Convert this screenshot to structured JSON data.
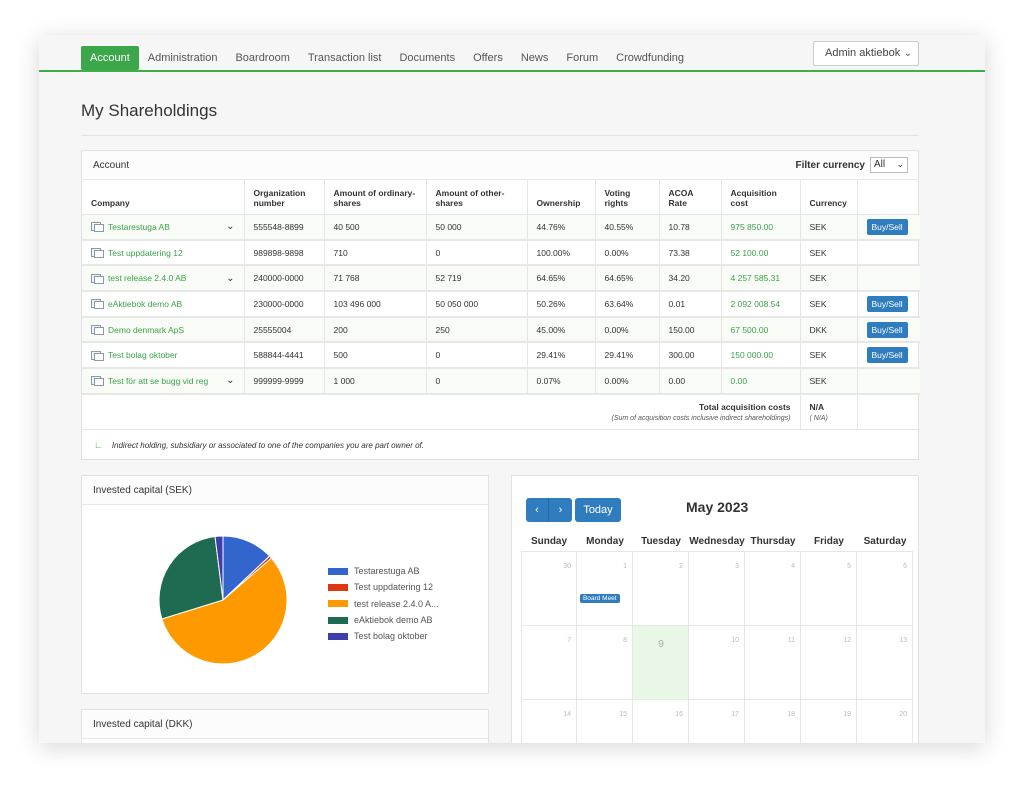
{
  "nav": {
    "items": [
      "Account",
      "Administration",
      "Boardroom",
      "Transaction list",
      "Documents",
      "Offers",
      "News",
      "Forum",
      "Crowdfunding"
    ],
    "active": "Account",
    "user_select": "Admin aktiebok"
  },
  "page_title": "My Shareholdings",
  "account_panel": {
    "title": "Account",
    "filter_label": "Filter currency",
    "filter_value": "All",
    "columns": [
      "Company",
      "Organization number",
      "Amount of ordinary-shares",
      "Amount of other-shares",
      "Ownership",
      "Voting rights",
      "ACOA Rate",
      "Acquisition cost",
      "Currency",
      ""
    ],
    "rows": [
      {
        "company": "Testarestuga AB",
        "org": "555548-8899",
        "ordinary": "40 500",
        "other": "50 000",
        "ownership": "44.76%",
        "voting": "40.55%",
        "acoa": "10.78",
        "cost": "975 850.00",
        "currency": "SEK",
        "expandable": true,
        "action": "Buy/Sell"
      },
      {
        "company": "Test uppdatering 12",
        "org": "989898-9898",
        "ordinary": "710",
        "other": "0",
        "ownership": "100.00%",
        "voting": "0.00%",
        "acoa": "73.38",
        "cost": "52 100.00",
        "currency": "SEK",
        "expandable": false,
        "action": ""
      },
      {
        "company": "test release 2.4.0 AB",
        "org": "240000-0000",
        "ordinary": "71 768",
        "other": "52 719",
        "ownership": "64.65%",
        "voting": "64.65%",
        "acoa": "34.20",
        "cost": "4 257 585.31",
        "currency": "SEK",
        "expandable": true,
        "action": ""
      },
      {
        "company": "eAktiebok demo AB",
        "org": "230000-0000",
        "ordinary": "103 496 000",
        "other": "50 050 000",
        "ownership": "50.26%",
        "voting": "63.64%",
        "acoa": "0.01",
        "cost": "2 092 008.54",
        "currency": "SEK",
        "expandable": false,
        "action": "Buy/Sell"
      },
      {
        "company": "Demo denmark ApS",
        "org": "25555004",
        "ordinary": "200",
        "other": "250",
        "ownership": "45.00%",
        "voting": "0.00%",
        "acoa": "150.00",
        "cost": "67 500.00",
        "currency": "DKK",
        "expandable": false,
        "action": "Buy/Sell"
      },
      {
        "company": "Test bolag oktober",
        "org": "588844-4441",
        "ordinary": "500",
        "other": "0",
        "ownership": "29.41%",
        "voting": "29.41%",
        "acoa": "300.00",
        "cost": "150 000.00",
        "currency": "SEK",
        "expandable": false,
        "action": "Buy/Sell"
      },
      {
        "company": "Test för att se bugg vid reg",
        "org": "999999-9999",
        "ordinary": "1 000",
        "other": "0",
        "ownership": "0.07%",
        "voting": "0.00%",
        "acoa": "0.00",
        "cost": "0.00",
        "currency": "SEK",
        "expandable": true,
        "action": ""
      }
    ],
    "total_label": "Total acquisition costs",
    "total_note": "(Sum of acquisition costs inclusive indirect shareholdings)",
    "total_value": "N/A",
    "total_value_sub": "( N/A)",
    "footnote": "Indirect holding, subsidiary or associated to one of the companies you are part owner of."
  },
  "invested_sek": {
    "title": "Invested capital (SEK)",
    "chart_data": {
      "type": "pie",
      "categories": [
        "Testarestuga AB",
        "Test uppdatering 12",
        "test release 2.4.0 A...",
        "eAktiebok demo AB",
        "Test bolag oktober"
      ],
      "values": [
        975850.0,
        52100.0,
        4257585.31,
        2092008.54,
        150000.0
      ],
      "colors": [
        "#3366cc",
        "#dc3912",
        "#ff9900",
        "#1e6b52",
        "#3b3eac"
      ],
      "legend": "right"
    }
  },
  "invested_dkk": {
    "title": "Invested capital (DKK)"
  },
  "calendar": {
    "prev_icon": "chevron-left-icon",
    "next_icon": "chevron-right-icon",
    "prev_label": "‹",
    "next_label": "›",
    "today_label": "Today",
    "title": "May 2023",
    "weekdays": [
      "Sunday",
      "Monday",
      "Tuesday",
      "Wednesday",
      "Thursday",
      "Friday",
      "Saturday"
    ],
    "weeks": [
      [
        "30",
        "1",
        "2",
        "3",
        "4",
        "5",
        "6"
      ],
      [
        "7",
        "8",
        "9",
        "10",
        "11",
        "12",
        "13"
      ],
      [
        "14",
        "15",
        "16",
        "17",
        "18",
        "19",
        "20"
      ]
    ],
    "today": "9",
    "event": {
      "day": "1",
      "label": "Board Meet"
    }
  }
}
